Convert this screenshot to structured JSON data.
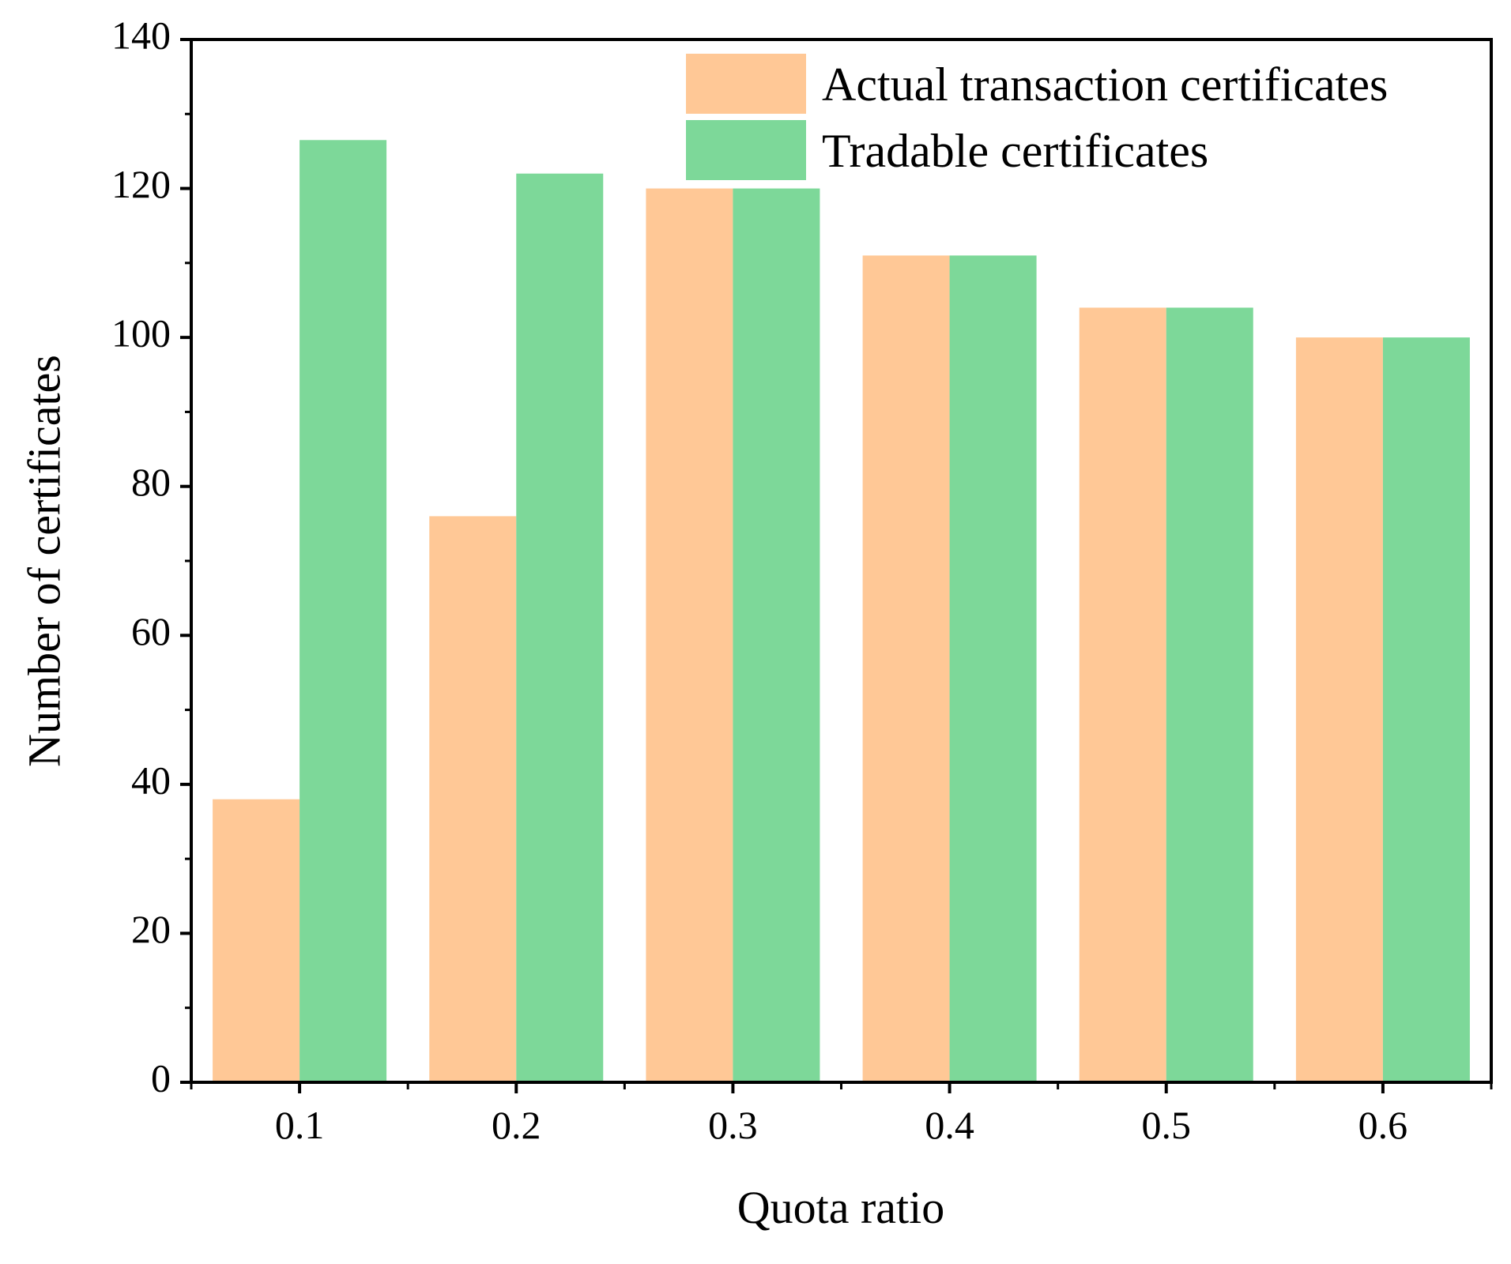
{
  "chart_data": {
    "type": "bar",
    "title": "",
    "xlabel": "Quota ratio",
    "ylabel": "Number of certificates",
    "categories": [
      "0.1",
      "0.2",
      "0.3",
      "0.4",
      "0.5",
      "0.6"
    ],
    "series": [
      {
        "name": "Actual transaction certificates",
        "color": "#ffc896",
        "values": [
          38,
          76,
          120,
          111,
          104,
          100
        ]
      },
      {
        "name": "Tradable certificates",
        "color": "#7dd899",
        "values": [
          126.5,
          122,
          120,
          111,
          104,
          100
        ]
      }
    ],
    "ylim": [
      0,
      140
    ],
    "yticks": [
      "0",
      "20",
      "40",
      "60",
      "80",
      "100",
      "120",
      "140"
    ],
    "grid": false,
    "legend_position": "top-right"
  }
}
